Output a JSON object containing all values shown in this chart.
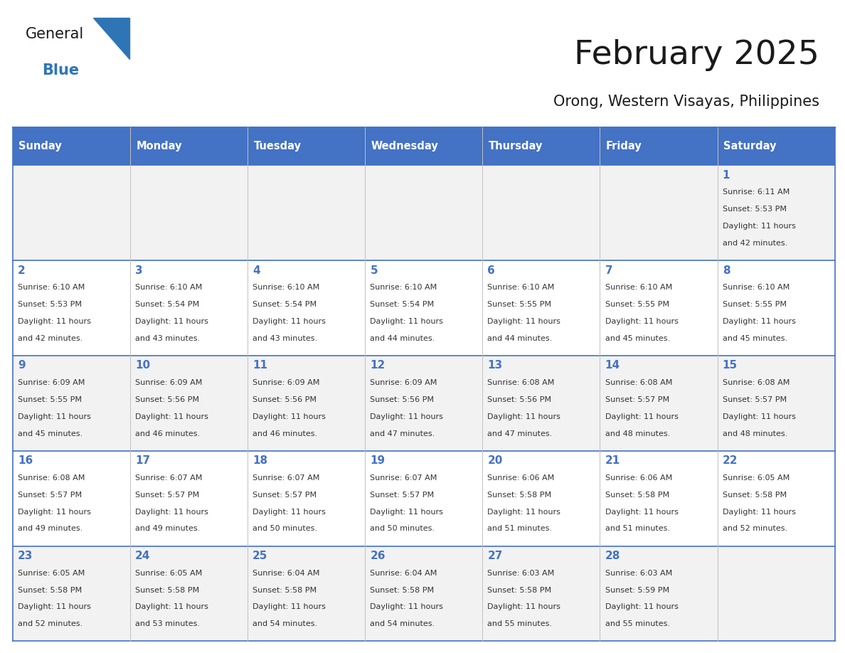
{
  "title": "February 2025",
  "subtitle": "Orong, Western Visayas, Philippines",
  "header_bg": "#4472C4",
  "header_text": "#FFFFFF",
  "weekdays": [
    "Sunday",
    "Monday",
    "Tuesday",
    "Wednesday",
    "Thursday",
    "Friday",
    "Saturday"
  ],
  "row_colors": [
    "#F2F2F2",
    "#FFFFFF"
  ],
  "border_color": "#4472C4",
  "text_color": "#333333",
  "day_num_color": "#4472C4",
  "logo_general_color": "#1a1a1a",
  "logo_blue_color": "#2e75b6",
  "logo_triangle_color": "#2e75b6",
  "calendar": [
    [
      {
        "day": "",
        "sunrise": "",
        "sunset": "",
        "daylight": ""
      },
      {
        "day": "",
        "sunrise": "",
        "sunset": "",
        "daylight": ""
      },
      {
        "day": "",
        "sunrise": "",
        "sunset": "",
        "daylight": ""
      },
      {
        "day": "",
        "sunrise": "",
        "sunset": "",
        "daylight": ""
      },
      {
        "day": "",
        "sunrise": "",
        "sunset": "",
        "daylight": ""
      },
      {
        "day": "",
        "sunrise": "",
        "sunset": "",
        "daylight": ""
      },
      {
        "day": "1",
        "sunrise": "6:11 AM",
        "sunset": "5:53 PM",
        "daylight": "11 hours and 42 minutes."
      }
    ],
    [
      {
        "day": "2",
        "sunrise": "6:10 AM",
        "sunset": "5:53 PM",
        "daylight": "11 hours and 42 minutes."
      },
      {
        "day": "3",
        "sunrise": "6:10 AM",
        "sunset": "5:54 PM",
        "daylight": "11 hours and 43 minutes."
      },
      {
        "day": "4",
        "sunrise": "6:10 AM",
        "sunset": "5:54 PM",
        "daylight": "11 hours and 43 minutes."
      },
      {
        "day": "5",
        "sunrise": "6:10 AM",
        "sunset": "5:54 PM",
        "daylight": "11 hours and 44 minutes."
      },
      {
        "day": "6",
        "sunrise": "6:10 AM",
        "sunset": "5:55 PM",
        "daylight": "11 hours and 44 minutes."
      },
      {
        "day": "7",
        "sunrise": "6:10 AM",
        "sunset": "5:55 PM",
        "daylight": "11 hours and 45 minutes."
      },
      {
        "day": "8",
        "sunrise": "6:10 AM",
        "sunset": "5:55 PM",
        "daylight": "11 hours and 45 minutes."
      }
    ],
    [
      {
        "day": "9",
        "sunrise": "6:09 AM",
        "sunset": "5:55 PM",
        "daylight": "11 hours and 45 minutes."
      },
      {
        "day": "10",
        "sunrise": "6:09 AM",
        "sunset": "5:56 PM",
        "daylight": "11 hours and 46 minutes."
      },
      {
        "day": "11",
        "sunrise": "6:09 AM",
        "sunset": "5:56 PM",
        "daylight": "11 hours and 46 minutes."
      },
      {
        "day": "12",
        "sunrise": "6:09 AM",
        "sunset": "5:56 PM",
        "daylight": "11 hours and 47 minutes."
      },
      {
        "day": "13",
        "sunrise": "6:08 AM",
        "sunset": "5:56 PM",
        "daylight": "11 hours and 47 minutes."
      },
      {
        "day": "14",
        "sunrise": "6:08 AM",
        "sunset": "5:57 PM",
        "daylight": "11 hours and 48 minutes."
      },
      {
        "day": "15",
        "sunrise": "6:08 AM",
        "sunset": "5:57 PM",
        "daylight": "11 hours and 48 minutes."
      }
    ],
    [
      {
        "day": "16",
        "sunrise": "6:08 AM",
        "sunset": "5:57 PM",
        "daylight": "11 hours and 49 minutes."
      },
      {
        "day": "17",
        "sunrise": "6:07 AM",
        "sunset": "5:57 PM",
        "daylight": "11 hours and 49 minutes."
      },
      {
        "day": "18",
        "sunrise": "6:07 AM",
        "sunset": "5:57 PM",
        "daylight": "11 hours and 50 minutes."
      },
      {
        "day": "19",
        "sunrise": "6:07 AM",
        "sunset": "5:57 PM",
        "daylight": "11 hours and 50 minutes."
      },
      {
        "day": "20",
        "sunrise": "6:06 AM",
        "sunset": "5:58 PM",
        "daylight": "11 hours and 51 minutes."
      },
      {
        "day": "21",
        "sunrise": "6:06 AM",
        "sunset": "5:58 PM",
        "daylight": "11 hours and 51 minutes."
      },
      {
        "day": "22",
        "sunrise": "6:05 AM",
        "sunset": "5:58 PM",
        "daylight": "11 hours and 52 minutes."
      }
    ],
    [
      {
        "day": "23",
        "sunrise": "6:05 AM",
        "sunset": "5:58 PM",
        "daylight": "11 hours and 52 minutes."
      },
      {
        "day": "24",
        "sunrise": "6:05 AM",
        "sunset": "5:58 PM",
        "daylight": "11 hours and 53 minutes."
      },
      {
        "day": "25",
        "sunrise": "6:04 AM",
        "sunset": "5:58 PM",
        "daylight": "11 hours and 54 minutes."
      },
      {
        "day": "26",
        "sunrise": "6:04 AM",
        "sunset": "5:58 PM",
        "daylight": "11 hours and 54 minutes."
      },
      {
        "day": "27",
        "sunrise": "6:03 AM",
        "sunset": "5:58 PM",
        "daylight": "11 hours and 55 minutes."
      },
      {
        "day": "28",
        "sunrise": "6:03 AM",
        "sunset": "5:59 PM",
        "daylight": "11 hours and 55 minutes."
      },
      {
        "day": "",
        "sunrise": "",
        "sunset": "",
        "daylight": ""
      }
    ]
  ]
}
